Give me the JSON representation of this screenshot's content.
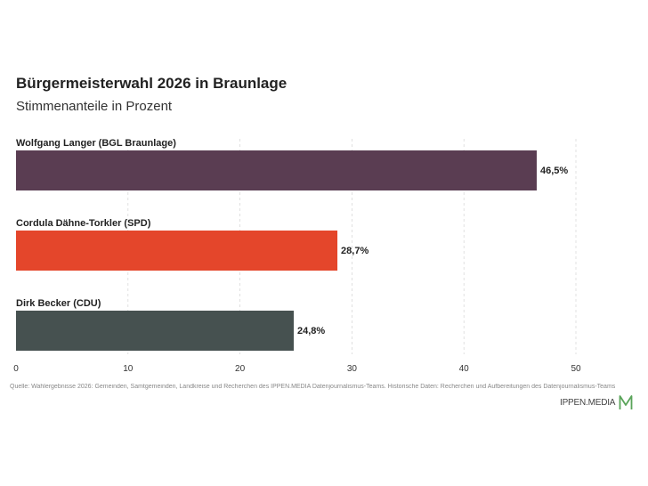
{
  "header": {
    "title": "Bürgermeisterwahl 2026 in Braunlage",
    "subtitle": "Stimmenanteile in Prozent"
  },
  "chart_data": {
    "type": "bar",
    "orientation": "horizontal",
    "categories": [
      "Wolfgang Langer (BGL Braunlage)",
      "Cordula Dähne-Torkler (SPD)",
      "Dirk Becker (CDU)"
    ],
    "values": [
      46.5,
      28.7,
      24.8
    ],
    "value_labels": [
      "46,5%",
      "28,7%",
      "24,8%"
    ],
    "colors": [
      "#5a3d52",
      "#e4462b",
      "#465150"
    ],
    "xlim": [
      0,
      50
    ],
    "x_ticks": [
      0,
      10,
      20,
      30,
      40,
      50
    ],
    "grid": "vertical dashed"
  },
  "footer": {
    "source": "Quelle: Wahlergebnisse 2026: Gemeinden, Samtgemeinden, Landkreise und Recherchen des IPPEN.MEDIA Datenjournalismus-Teams. Historische Daten: Recherchen und Aufbereitungen des Datenjournalismus-Teams",
    "brand": "IPPEN.MEDIA"
  }
}
